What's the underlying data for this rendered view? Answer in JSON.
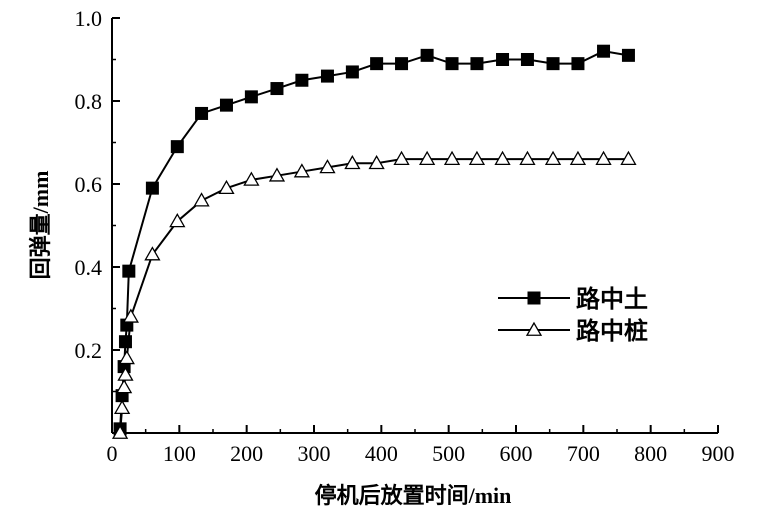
{
  "chart_data": {
    "type": "line",
    "xlabel": "停机后放置时间/min",
    "ylabel": "回弹量/mm",
    "xlim": [
      0,
      900
    ],
    "ylim": [
      0,
      1.0
    ],
    "x_ticks": [
      0,
      100,
      200,
      300,
      400,
      500,
      600,
      700,
      800,
      900
    ],
    "x_tick_labels": [
      "0",
      "100",
      "200",
      "300",
      "400",
      "500",
      "600",
      "700",
      "800",
      "900"
    ],
    "y_ticks": [
      0.2,
      0.4,
      0.6,
      0.8,
      1.0
    ],
    "y_tick_labels": [
      "0.2",
      "0.4",
      "0.6",
      "0.8",
      "1.0"
    ],
    "grid": false,
    "legend_position": "right-middle",
    "series": [
      {
        "name": "路中土",
        "marker": "filled-square",
        "color": "#000000",
        "x": [
          12,
          15,
          18,
          20,
          22,
          25,
          60,
          97,
          133,
          170,
          207,
          245,
          282,
          320,
          357,
          393,
          430,
          468,
          505,
          542,
          580,
          617,
          655,
          692,
          730,
          767
        ],
        "y": [
          0.01,
          0.09,
          0.16,
          0.22,
          0.26,
          0.39,
          0.59,
          0.69,
          0.77,
          0.79,
          0.81,
          0.83,
          0.85,
          0.86,
          0.87,
          0.89,
          0.89,
          0.91,
          0.89,
          0.89,
          0.9,
          0.9,
          0.89,
          0.89,
          0.92,
          0.91
        ]
      },
      {
        "name": "路中桩",
        "marker": "open-triangle",
        "color": "#000000",
        "x": [
          12,
          15,
          18,
          20,
          22,
          28,
          60,
          97,
          133,
          170,
          207,
          245,
          282,
          320,
          357,
          393,
          430,
          468,
          505,
          542,
          580,
          617,
          655,
          692,
          730,
          767
        ],
        "y": [
          0.0,
          0.06,
          0.11,
          0.14,
          0.18,
          0.28,
          0.43,
          0.51,
          0.56,
          0.59,
          0.61,
          0.62,
          0.63,
          0.64,
          0.65,
          0.65,
          0.66,
          0.66,
          0.66,
          0.66,
          0.66,
          0.66,
          0.66,
          0.66,
          0.66,
          0.66
        ]
      }
    ]
  }
}
